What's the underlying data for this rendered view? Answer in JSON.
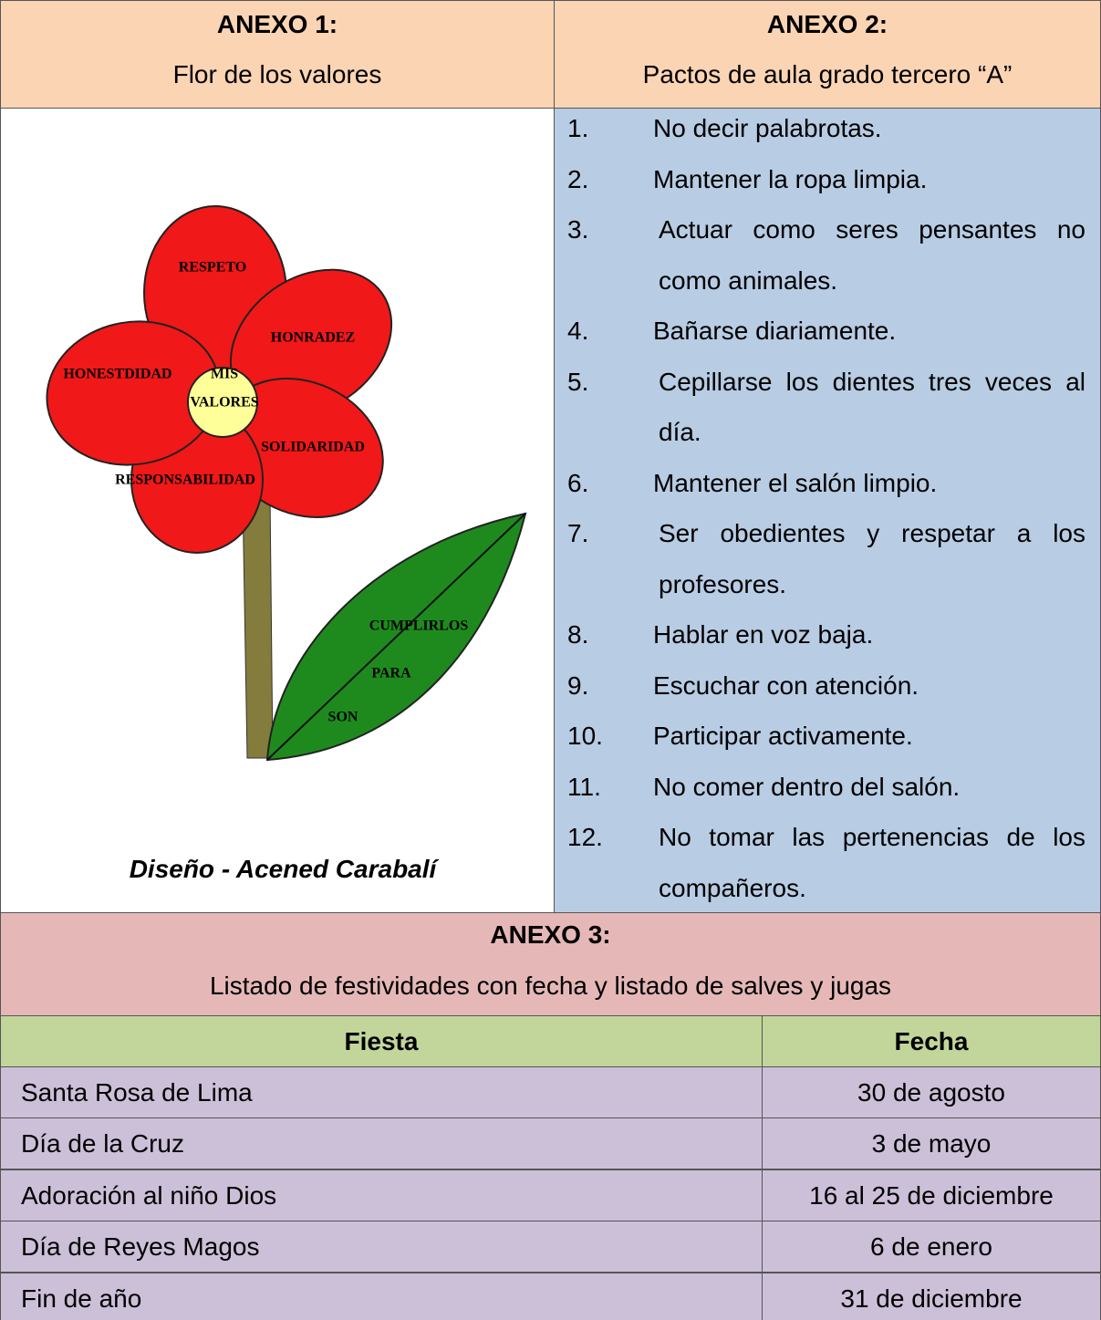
{
  "annex1": {
    "heading": "ANEXO 1:",
    "title": "Flor de los valores",
    "flower_labels": {
      "petal_top": "RESPETO",
      "petal_right_upper": "HONRADEZ",
      "petal_left": "HONESTDIDAD",
      "center_1": "MIS",
      "center_2": "VALORES",
      "petal_right_lower": "SOLIDARIDAD",
      "petal_left_lower": "RESPONSABILIDAD",
      "leaf_1": "CUMPLIRLOS",
      "leaf_2": "PARA",
      "leaf_3": "SON"
    },
    "caption": "Diseño - Acened Carabalí"
  },
  "annex2": {
    "heading": "ANEXO 2:",
    "title": "Pactos de aula grado tercero “A”",
    "items": [
      {
        "number": "1.",
        "text": "No decir palabrotas."
      },
      {
        "number": "2.",
        "text": "Mantener la ropa limpia."
      },
      {
        "number": "3.",
        "text": "Actuar como seres pensantes no como animales."
      },
      {
        "number": "4.",
        "text": "Bañarse diariamente."
      },
      {
        "number": "5.",
        "text": "Cepillarse los dientes tres veces al día."
      },
      {
        "number": "6.",
        "text": "Mantener el salón limpio."
      },
      {
        "number": "7.",
        "text": "Ser obedientes y respetar a los profesores."
      },
      {
        "number": "8.",
        "text": "Hablar en voz baja."
      },
      {
        "number": "9.",
        "text": "Escuchar con atención."
      },
      {
        "number": "10.",
        "text": "Participar activamente."
      },
      {
        "number": "11.",
        "text": "No comer dentro del salón."
      },
      {
        "number": "12.",
        "text": "No tomar las pertenencias de los compañeros."
      }
    ]
  },
  "annex3": {
    "heading": "ANEXO 3:",
    "title": "Listado de festividades con fecha y listado de salves y jugas",
    "table": {
      "columns": [
        "Fiesta",
        "Fecha"
      ],
      "rows": [
        [
          "Santa Rosa de Lima",
          "30 de agosto"
        ],
        [
          "Día de la Cruz",
          "3 de mayo"
        ],
        [
          "Adoración al niño Dios",
          "16 al 25 de diciembre"
        ],
        [
          "Día de Reyes Magos",
          "6 de enero"
        ],
        [
          "Fin de año",
          "31 de diciembre"
        ]
      ]
    }
  }
}
